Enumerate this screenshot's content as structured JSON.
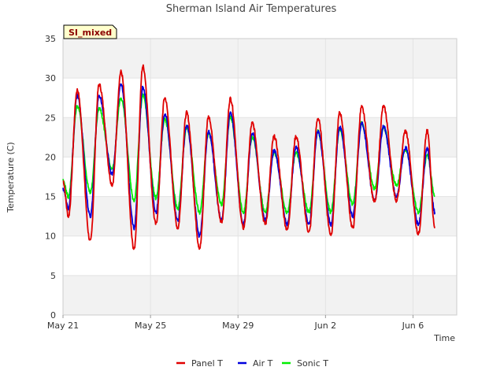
{
  "chart_data": {
    "type": "line",
    "title": "Sherman Island Air Temperatures",
    "badge": "SI_mixed",
    "xlabel": "Time",
    "ylabel": "Temperature (C)",
    "ylim": [
      0,
      35
    ],
    "xlim": [
      0,
      18
    ],
    "yticks": [
      0,
      5,
      10,
      15,
      20,
      25,
      30,
      35
    ],
    "xticks": [
      {
        "day": 0,
        "label": "May 21"
      },
      {
        "day": 4,
        "label": "May 25"
      },
      {
        "day": 8,
        "label": "May 29"
      },
      {
        "day": 12,
        "label": "Jun 2"
      },
      {
        "day": 16,
        "label": "Jun 6"
      }
    ],
    "x_unit": "days since May 21",
    "grid": true,
    "alternating_bands": true,
    "legend_position": "bottom",
    "series": [
      {
        "name": "Panel T",
        "color": "#e00000",
        "daily_max": [
          28.5,
          29.2,
          30.8,
          31.5,
          27.5,
          25.6,
          25.1,
          27.4,
          24.3,
          22.6,
          22.6,
          24.9,
          25.6,
          26.3,
          26.4,
          23.3,
          23.3
        ],
        "daily_min": [
          12.5,
          9.3,
          16.5,
          8.3,
          11.5,
          11.0,
          8.5,
          11.7,
          11.0,
          11.5,
          10.8,
          10.5,
          10.2,
          11.0,
          14.3,
          14.5,
          10.3
        ],
        "start": 17.0,
        "end": 11.0
      },
      {
        "name": "Air T",
        "color": "#0000dd",
        "daily_max": [
          27.8,
          27.8,
          29.3,
          28.8,
          25.5,
          24.0,
          23.2,
          25.6,
          23.0,
          20.8,
          21.2,
          23.3,
          23.8,
          24.3,
          23.8,
          21.2,
          21.0
        ],
        "daily_min": [
          13.5,
          12.5,
          17.8,
          11.0,
          13.0,
          12.0,
          10.0,
          12.0,
          11.5,
          12.0,
          11.5,
          11.5,
          11.5,
          12.5,
          14.5,
          15.0,
          11.5
        ],
        "start": 16.0,
        "end": 13.0
      },
      {
        "name": "Sonic T",
        "color": "#00ee00",
        "daily_max": [
          26.5,
          26.2,
          27.5,
          27.8,
          24.8,
          23.8,
          23.0,
          25.1,
          22.5,
          20.6,
          20.6,
          23.2,
          23.6,
          24.3,
          23.8,
          21.0,
          20.3
        ],
        "daily_min": [
          15.0,
          15.5,
          18.5,
          14.5,
          14.8,
          13.5,
          13.0,
          14.0,
          13.0,
          13.0,
          13.0,
          13.0,
          13.0,
          14.0,
          16.0,
          16.5,
          13.0
        ],
        "start": 17.0,
        "end": 15.0
      }
    ]
  }
}
